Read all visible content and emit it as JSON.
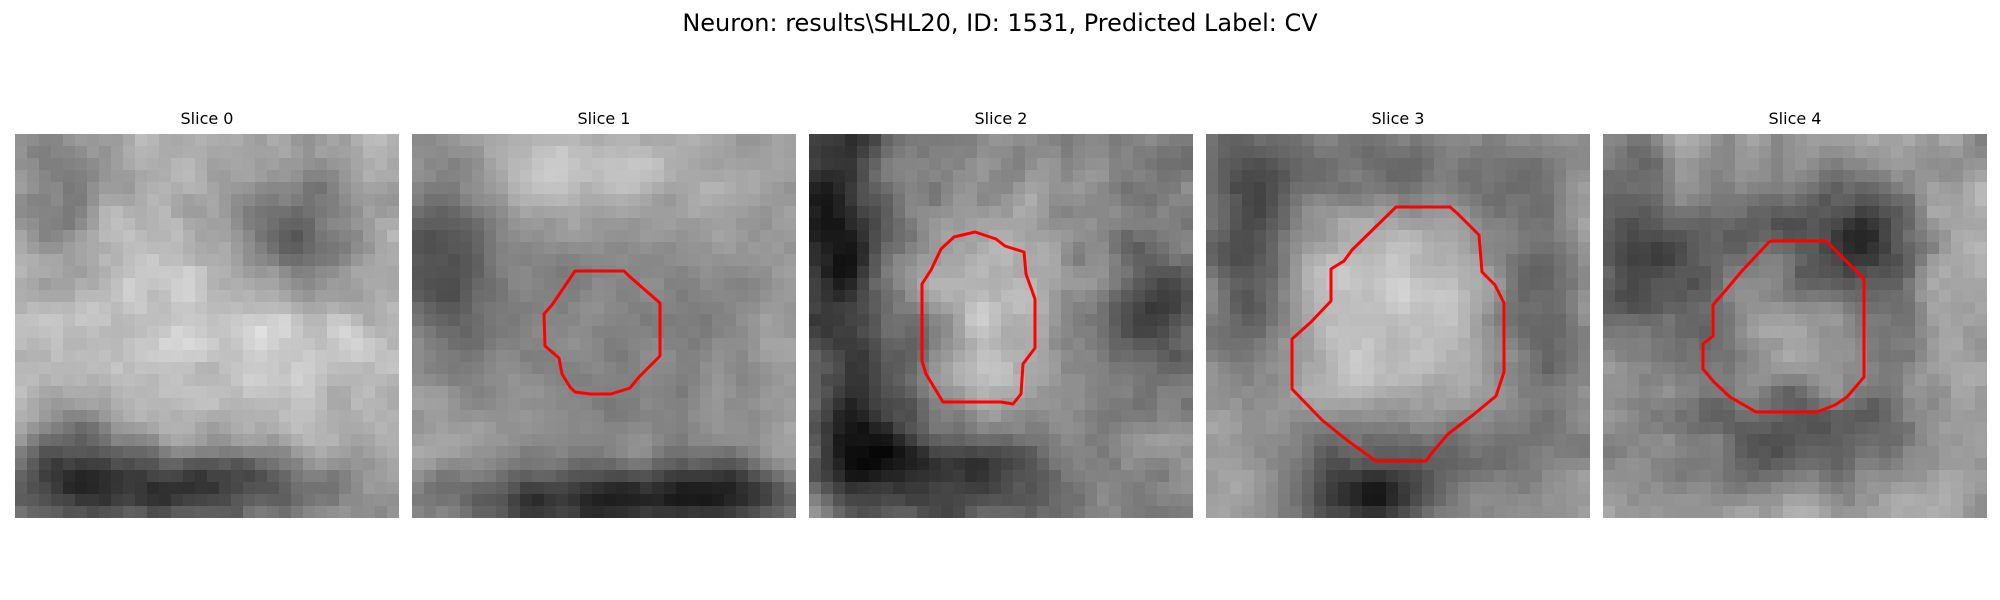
{
  "figure": {
    "title": "Neuron: results\\SHL20, ID: 1531, Predicted Label: CV"
  },
  "colors": {
    "contour": "#ff0000",
    "background": "#ffffff"
  },
  "slices": [
    {
      "title": "Slice 0",
      "has_contour": false
    },
    {
      "title": "Slice 1",
      "has_contour": true
    },
    {
      "title": "Slice 2",
      "has_contour": true
    },
    {
      "title": "Slice 3",
      "has_contour": true
    },
    {
      "title": "Slice 4",
      "has_contour": true
    }
  ]
}
